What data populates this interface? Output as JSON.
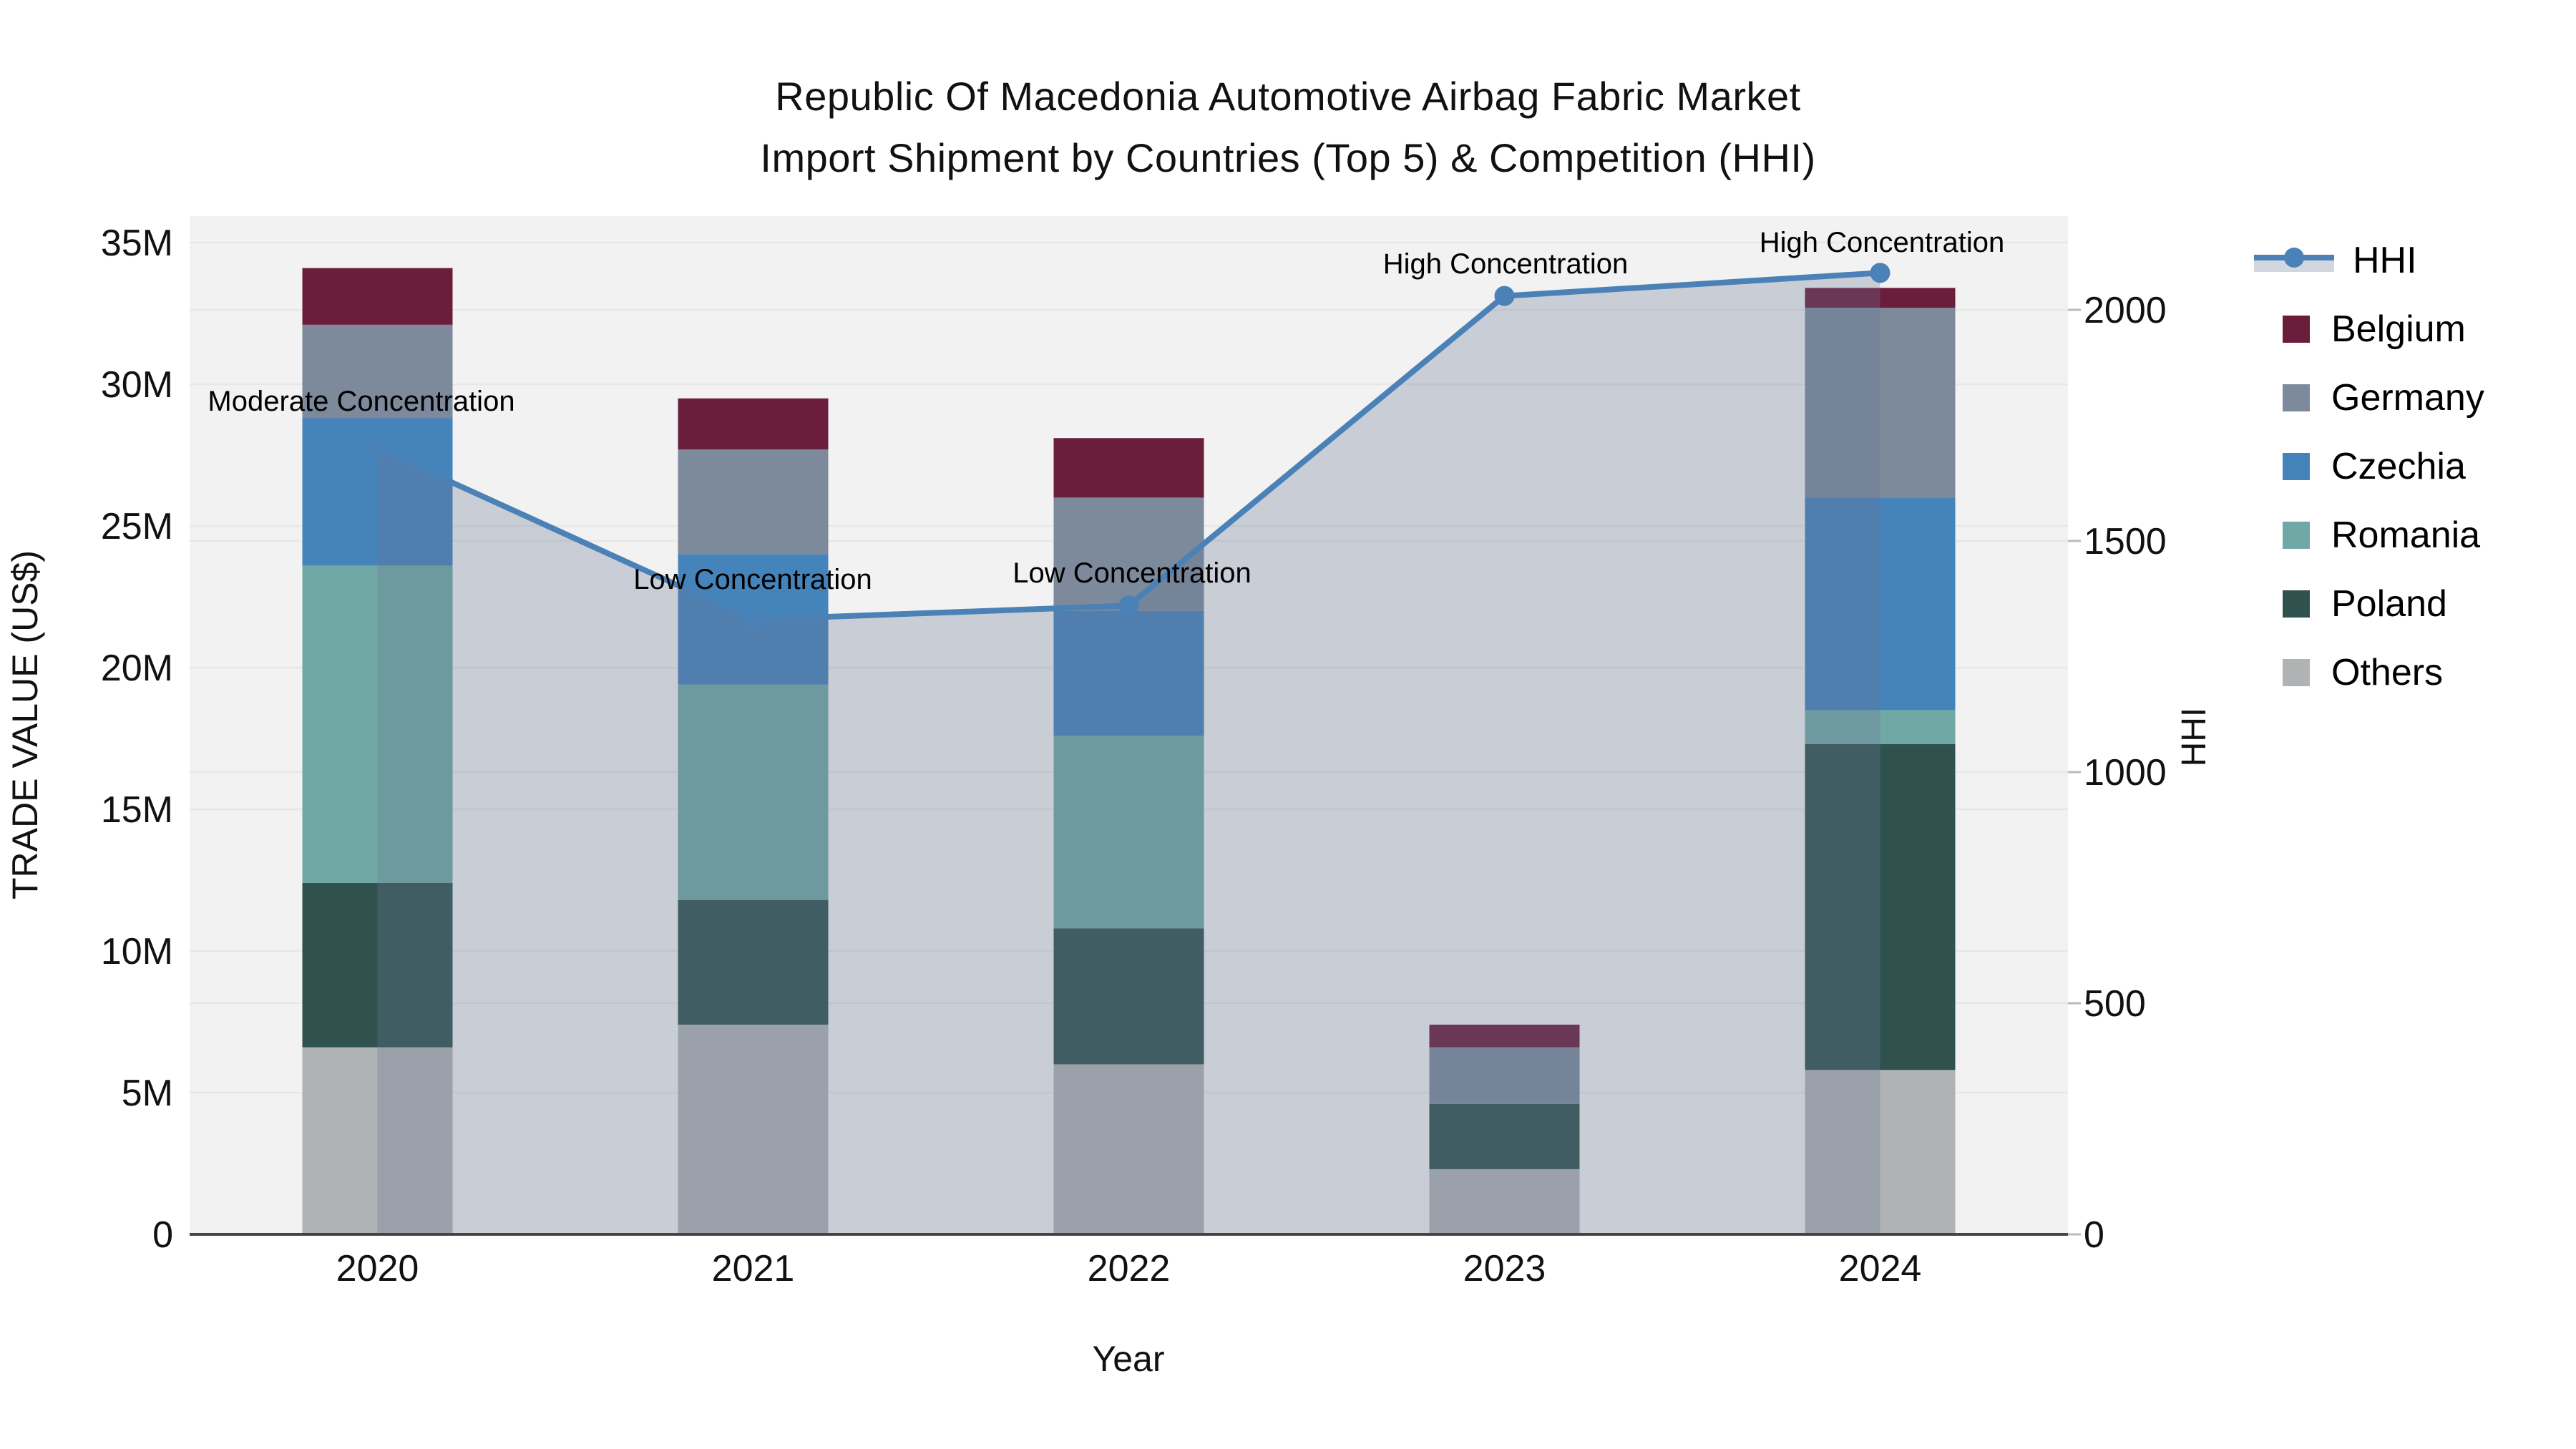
{
  "title": {
    "line1": "Republic Of Macedonia Automotive Airbag Fabric Market",
    "line2": "Import Shipment by Countries (Top 5) & Competition (HHI)"
  },
  "axes": {
    "x_title": "Year",
    "y_left_title": "TRADE VALUE (US$)",
    "y_right_title": "HHI",
    "y_left_ticks": [
      "0",
      "5M",
      "10M",
      "15M",
      "20M",
      "25M",
      "30M",
      "35M"
    ],
    "y_left_tick_values": [
      0,
      5,
      10,
      15,
      20,
      25,
      30,
      35
    ],
    "y_right_ticks": [
      "0",
      "500",
      "1000",
      "1500",
      "2000"
    ],
    "y_right_tick_values": [
      0,
      500,
      1000,
      1500,
      2000
    ]
  },
  "legend": {
    "items": [
      {
        "label": "HHI",
        "type": "line",
        "color": "#4a81b6"
      },
      {
        "label": "Belgium",
        "type": "swatch",
        "color": "#6b1d3c"
      },
      {
        "label": "Germany",
        "type": "swatch",
        "color": "#7c8a9c"
      },
      {
        "label": "Czechia",
        "type": "swatch",
        "color": "#4583bb"
      },
      {
        "label": "Romania",
        "type": "swatch",
        "color": "#6fa8a4"
      },
      {
        "label": "Poland",
        "type": "swatch",
        "color": "#2f524e"
      },
      {
        "label": "Others",
        "type": "swatch",
        "color": "#b0b3b4"
      }
    ]
  },
  "chart_data": {
    "type": "combo-stacked-bar-line",
    "categories": [
      "2020",
      "2021",
      "2022",
      "2023",
      "2024"
    ],
    "bar_unit": "million US$",
    "series": [
      {
        "name": "Belgium",
        "color": "#6b1d3c",
        "values": [
          2.0,
          1.8,
          2.1,
          0.8,
          0.7
        ]
      },
      {
        "name": "Germany",
        "color": "#7c8a9c",
        "values": [
          3.3,
          3.7,
          4.0,
          2.0,
          6.7
        ]
      },
      {
        "name": "Czechia",
        "color": "#4583bb",
        "values": [
          5.2,
          4.6,
          4.4,
          0,
          7.5
        ]
      },
      {
        "name": "Romania",
        "color": "#6fa8a4",
        "values": [
          11.2,
          7.6,
          6.8,
          0,
          1.2
        ]
      },
      {
        "name": "Poland",
        "color": "#2f524e",
        "values": [
          5.8,
          4.4,
          4.8,
          2.3,
          11.5
        ]
      },
      {
        "name": "Others",
        "color": "#b0b3b4",
        "values": [
          6.6,
          7.4,
          6.0,
          2.3,
          5.8
        ]
      }
    ],
    "stack_order_bottom_to_top": [
      "Others",
      "Poland",
      "Romania",
      "Czechia",
      "Germany",
      "Belgium"
    ],
    "bar_totals": [
      34.1,
      29.5,
      28.1,
      7.4,
      33.4
    ],
    "line": {
      "name": "HHI",
      "axis": "right",
      "color": "#4a81b6",
      "fill_color": "rgba(105,118,148,0.30)",
      "values": [
        1700,
        1330,
        1360,
        2030,
        2080
      ]
    },
    "annotations": [
      {
        "text": "Moderate Concentration",
        "x": 505,
        "y": 560
      },
      {
        "text": "Low Concentration",
        "x": 1052,
        "y": 809
      },
      {
        "text": "Low Concentration",
        "x": 1582,
        "y": 800
      },
      {
        "text": "High Concentration",
        "x": 2104,
        "y": 368
      },
      {
        "text": "High Concentration",
        "x": 2630,
        "y": 338
      }
    ],
    "ylim_left": [
      0,
      35
    ],
    "ylim_right": [
      0,
      2145
    ],
    "grid": true,
    "legend_position": "right"
  },
  "colors": {
    "plot_bg": "#f2f2f2",
    "grid": "#e7e7e7",
    "axis_line": "#444444",
    "text": "#111111"
  }
}
